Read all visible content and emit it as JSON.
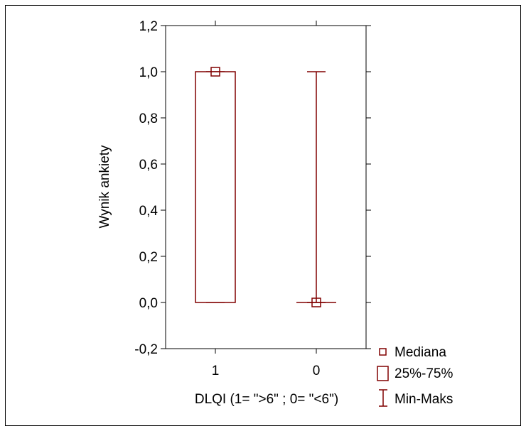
{
  "chart_data": {
    "type": "boxplot",
    "xlabel": "DLQI (1= \">6\" ; 0= \"<6\")",
    "ylabel": "Wynik ankiety",
    "ylim": [
      -0.2,
      1.2
    ],
    "yticks": [
      -0.2,
      0.0,
      0.2,
      0.4,
      0.6,
      0.8,
      1.0,
      1.2
    ],
    "ytick_labels": [
      "-0,2",
      "0,0",
      "0,2",
      "0,4",
      "0,6",
      "0,8",
      "1,0",
      "1,2"
    ],
    "categories": [
      "1",
      "0"
    ],
    "groups": [
      {
        "category": "1",
        "median": 1.0,
        "q1": 0.0,
        "q3": 1.0,
        "min": 0.0,
        "max": 1.0
      },
      {
        "category": "0",
        "median": 0.0,
        "q1": 0.0,
        "q3": 0.0,
        "min": 0.0,
        "max": 1.0
      }
    ],
    "color": "#800000",
    "legend": {
      "position": "bottom-right",
      "items": [
        {
          "symbol": "square",
          "label": "Mediana"
        },
        {
          "symbol": "box",
          "label": "25%-75%"
        },
        {
          "symbol": "whisker",
          "label": "Min-Maks"
        }
      ]
    }
  }
}
